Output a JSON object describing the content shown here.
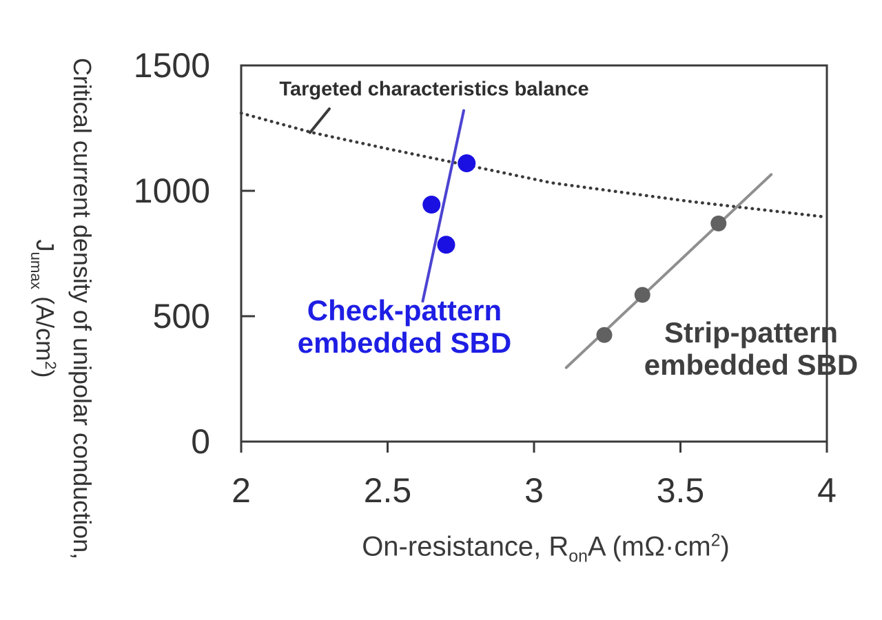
{
  "chart_data": {
    "type": "scatter",
    "title": "",
    "xlabel_parts": {
      "pre": "On-resistance, R",
      "sub": "on",
      "mid": "A (mΩ·cm",
      "sup": "2",
      "post": ")"
    },
    "ylabel_line1": "Critical current density of unipolar conduction,",
    "ylabel_line2_parts": {
      "pre": "J",
      "sub": "umax",
      "mid": " (A/cm",
      "sup": "2",
      "post": ")"
    },
    "xlim": [
      2,
      4
    ],
    "ylim": [
      0,
      1500
    ],
    "grid": false,
    "x_ticks": [
      2,
      2.5,
      3,
      3.5,
      4
    ],
    "x_tick_labels": [
      "2",
      "2.5",
      "3",
      "3.5",
      "4"
    ],
    "y_ticks": [
      0,
      500,
      1000,
      1500
    ],
    "y_tick_labels": [
      "0",
      "500",
      "1000",
      "1500"
    ],
    "axis_color": "#3a3a3a",
    "series": [
      {
        "name": "Check-pattern embedded SBD",
        "marker_color": "#1a10e2",
        "line_color": "#4b43d1",
        "marker_radius": 13,
        "points": [
          [
            2.65,
            945
          ],
          [
            2.7,
            785
          ],
          [
            2.77,
            1110
          ]
        ],
        "trend_line": [
          [
            2.62,
            560
          ],
          [
            2.76,
            1320
          ]
        ]
      },
      {
        "name": "Strip-pattern embedded SBD",
        "marker_color": "#616161",
        "line_color": "#8f8f8f",
        "marker_radius": 11.5,
        "points": [
          [
            3.24,
            425
          ],
          [
            3.37,
            585
          ],
          [
            3.63,
            870
          ]
        ],
        "trend_line": [
          [
            3.11,
            295
          ],
          [
            3.81,
            1065
          ]
        ]
      }
    ],
    "target_curve": {
      "label": "Targeted characteristics balance",
      "style": "dotted",
      "color": "#3a3a3a",
      "points": [
        [
          2.0,
          1310
        ],
        [
          2.24,
          1233
        ],
        [
          2.49,
          1170
        ],
        [
          2.78,
          1100
        ],
        [
          3.06,
          1032
        ],
        [
          3.53,
          958
        ],
        [
          4.0,
          895
        ]
      ]
    },
    "annotations": {
      "target": {
        "text": "Targeted characteristics balance",
        "color": "#2e2e2e"
      },
      "check": {
        "line1": "Check-pattern",
        "line2": "embedded SBD",
        "color": "#1e1ee4"
      },
      "strip": {
        "line1": "Strip-pattern",
        "line2": "embedded SBD",
        "color": "#3f3f3f"
      },
      "pointer": {
        "from": [
          2.301,
          1327
        ],
        "to": [
          2.235,
          1232
        ]
      }
    }
  }
}
